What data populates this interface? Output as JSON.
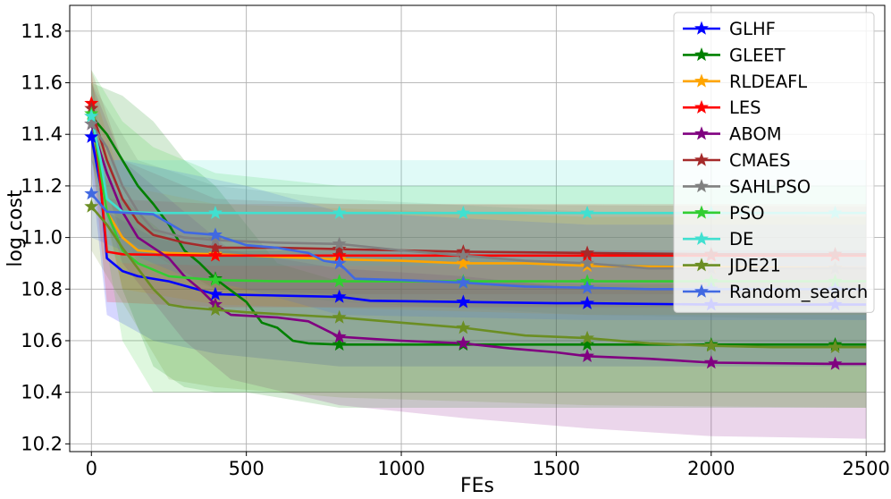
{
  "chart_data": {
    "type": "line",
    "title": "",
    "xlabel": "FEs",
    "ylabel": "log cost",
    "xlim": [
      -70,
      2560
    ],
    "ylim": [
      10.17,
      11.9
    ],
    "xticks": [
      0,
      500,
      1000,
      1500,
      2000,
      2500
    ],
    "xtick_labels": [
      "0",
      "500",
      "1000",
      "1500",
      "2000",
      "2500"
    ],
    "yticks": [
      10.2,
      10.4,
      10.6,
      10.8,
      11.0,
      11.2,
      11.4,
      11.6,
      11.8
    ],
    "ytick_labels": [
      "10.2",
      "10.4",
      "10.6",
      "10.8",
      "11.0",
      "11.2",
      "11.4",
      "11.6",
      "11.8"
    ],
    "grid": true,
    "legend_position": "top-right",
    "marker": "star",
    "marker_x": [
      0,
      400,
      800,
      1200,
      1600,
      2000,
      2400
    ],
    "series": [
      {
        "name": "GLHF",
        "color": "#0000ff",
        "points": [
          [
            0,
            11.39
          ],
          [
            30,
            11.2
          ],
          [
            50,
            10.92
          ],
          [
            100,
            10.87
          ],
          [
            150,
            10.85
          ],
          [
            250,
            10.83
          ],
          [
            400,
            10.78
          ],
          [
            600,
            10.775
          ],
          [
            800,
            10.77
          ],
          [
            900,
            10.755
          ],
          [
            1200,
            10.75
          ],
          [
            1500,
            10.745
          ],
          [
            1600,
            10.745
          ],
          [
            2000,
            10.74
          ],
          [
            2500,
            10.74
          ]
        ],
        "band": [
          [
            0,
            11.25,
            11.55
          ],
          [
            50,
            10.7,
            11.1
          ],
          [
            200,
            10.6,
            11.0
          ],
          [
            400,
            10.55,
            10.95
          ],
          [
            800,
            10.5,
            10.95
          ],
          [
            1600,
            10.5,
            10.95
          ],
          [
            2500,
            10.5,
            10.95
          ]
        ]
      },
      {
        "name": "GLEET",
        "color": "#008000",
        "points": [
          [
            0,
            11.47
          ],
          [
            50,
            11.4
          ],
          [
            100,
            11.3
          ],
          [
            150,
            11.2
          ],
          [
            200,
            11.13
          ],
          [
            250,
            11.05
          ],
          [
            300,
            10.95
          ],
          [
            350,
            10.9
          ],
          [
            400,
            10.84
          ],
          [
            500,
            10.75
          ],
          [
            550,
            10.67
          ],
          [
            600,
            10.65
          ],
          [
            650,
            10.6
          ],
          [
            700,
            10.59
          ],
          [
            800,
            10.585
          ],
          [
            1200,
            10.585
          ],
          [
            1600,
            10.585
          ],
          [
            2000,
            10.585
          ],
          [
            2500,
            10.585
          ]
        ],
        "band": [
          [
            0,
            11.35,
            11.6
          ],
          [
            100,
            10.8,
            11.55
          ],
          [
            200,
            10.5,
            11.45
          ],
          [
            300,
            10.42,
            11.3
          ],
          [
            400,
            10.4,
            11.2
          ],
          [
            500,
            10.4,
            11.05
          ],
          [
            600,
            10.38,
            10.9
          ],
          [
            800,
            10.34,
            10.83
          ],
          [
            1600,
            10.34,
            10.82
          ],
          [
            2500,
            10.34,
            10.82
          ]
        ]
      },
      {
        "name": "RLDEAFL",
        "color": "#ffa500",
        "points": [
          [
            0,
            11.48
          ],
          [
            50,
            11.1
          ],
          [
            100,
            11.0
          ],
          [
            150,
            10.95
          ],
          [
            250,
            10.94
          ],
          [
            400,
            10.935
          ],
          [
            800,
            10.915
          ],
          [
            1000,
            10.91
          ],
          [
            1200,
            10.9
          ],
          [
            1400,
            10.9
          ],
          [
            1600,
            10.89
          ],
          [
            2000,
            10.885
          ],
          [
            2500,
            10.88
          ]
        ],
        "band": [
          [
            0,
            11.3,
            11.6
          ],
          [
            100,
            10.8,
            11.2
          ],
          [
            400,
            10.74,
            11.13
          ],
          [
            1600,
            10.7,
            11.08
          ],
          [
            2500,
            10.7,
            11.08
          ]
        ]
      },
      {
        "name": "LES",
        "color": "#ff0000",
        "points": [
          [
            0,
            11.52
          ],
          [
            30,
            11.2
          ],
          [
            50,
            10.945
          ],
          [
            100,
            10.935
          ],
          [
            400,
            10.93
          ],
          [
            1200,
            10.93
          ],
          [
            1600,
            10.93
          ],
          [
            2000,
            10.93
          ],
          [
            2500,
            10.93
          ]
        ],
        "band": [
          [
            0,
            11.35,
            11.65
          ],
          [
            50,
            10.75,
            11.15
          ],
          [
            400,
            10.73,
            11.13
          ],
          [
            2500,
            10.73,
            11.13
          ]
        ]
      },
      {
        "name": "ABOM",
        "color": "#800080",
        "points": [
          [
            0,
            11.44
          ],
          [
            50,
            11.25
          ],
          [
            100,
            11.1
          ],
          [
            150,
            11.0
          ],
          [
            200,
            10.96
          ],
          [
            250,
            10.92
          ],
          [
            300,
            10.85
          ],
          [
            350,
            10.8
          ],
          [
            400,
            10.74
          ],
          [
            450,
            10.7
          ],
          [
            600,
            10.69
          ],
          [
            700,
            10.675
          ],
          [
            800,
            10.615
          ],
          [
            1000,
            10.6
          ],
          [
            1200,
            10.59
          ],
          [
            1350,
            10.57
          ],
          [
            1500,
            10.555
          ],
          [
            1600,
            10.54
          ],
          [
            1800,
            10.53
          ],
          [
            2000,
            10.515
          ],
          [
            2400,
            10.51
          ],
          [
            2500,
            10.51
          ]
        ],
        "band": [
          [
            0,
            11.3,
            11.6
          ],
          [
            100,
            10.9,
            11.3
          ],
          [
            300,
            10.6,
            11.1
          ],
          [
            450,
            10.45,
            10.95
          ],
          [
            800,
            10.35,
            10.88
          ],
          [
            1200,
            10.3,
            10.85
          ],
          [
            1600,
            10.26,
            10.8
          ],
          [
            2000,
            10.23,
            10.8
          ],
          [
            2500,
            10.22,
            10.8
          ]
        ]
      },
      {
        "name": "CMAES",
        "color": "#a52a2a",
        "points": [
          [
            0,
            11.5
          ],
          [
            50,
            11.3
          ],
          [
            100,
            11.15
          ],
          [
            150,
            11.06
          ],
          [
            200,
            11.01
          ],
          [
            300,
            10.98
          ],
          [
            400,
            10.96
          ],
          [
            600,
            10.96
          ],
          [
            800,
            10.955
          ],
          [
            1000,
            10.95
          ],
          [
            1200,
            10.945
          ],
          [
            1600,
            10.94
          ],
          [
            2000,
            10.935
          ],
          [
            2500,
            10.935
          ]
        ],
        "band": [
          [
            0,
            11.35,
            11.65
          ],
          [
            100,
            11.0,
            11.3
          ],
          [
            400,
            10.8,
            11.15
          ],
          [
            800,
            10.78,
            11.13
          ],
          [
            2500,
            10.78,
            11.12
          ]
        ]
      },
      {
        "name": "SAHLPSO",
        "color": "#808080",
        "points": [
          [
            0,
            11.44
          ],
          [
            50,
            11.35
          ],
          [
            100,
            11.2
          ],
          [
            150,
            11.1
          ],
          [
            200,
            11.03
          ],
          [
            300,
            11.0
          ],
          [
            400,
            10.99
          ],
          [
            600,
            10.98
          ],
          [
            800,
            10.975
          ],
          [
            1000,
            10.95
          ],
          [
            1200,
            10.93
          ],
          [
            1400,
            10.91
          ],
          [
            1600,
            10.9
          ],
          [
            1800,
            10.88
          ],
          [
            2000,
            10.88
          ],
          [
            2500,
            10.88
          ]
        ],
        "band": [
          [
            0,
            11.3,
            11.6
          ],
          [
            150,
            10.9,
            11.3
          ],
          [
            400,
            10.8,
            11.2
          ],
          [
            800,
            10.75,
            11.15
          ],
          [
            1600,
            10.7,
            11.1
          ],
          [
            2500,
            10.68,
            11.08
          ]
        ]
      },
      {
        "name": "PSO",
        "color": "#32cd32",
        "points": [
          [
            0,
            11.48
          ],
          [
            50,
            11.1
          ],
          [
            100,
            10.95
          ],
          [
            150,
            10.9
          ],
          [
            250,
            10.85
          ],
          [
            400,
            10.835
          ],
          [
            600,
            10.83
          ],
          [
            800,
            10.83
          ],
          [
            1200,
            10.83
          ],
          [
            1600,
            10.83
          ],
          [
            2000,
            10.83
          ],
          [
            2500,
            10.83
          ]
        ],
        "band": [
          [
            0,
            11.3,
            11.65
          ],
          [
            100,
            10.6,
            11.45
          ],
          [
            200,
            10.4,
            11.35
          ],
          [
            400,
            10.4,
            11.25
          ],
          [
            800,
            10.4,
            11.2
          ],
          [
            2500,
            10.4,
            11.2
          ]
        ]
      },
      {
        "name": "DE",
        "color": "#40e0d0",
        "points": [
          [
            0,
            11.47
          ],
          [
            30,
            11.3
          ],
          [
            50,
            11.15
          ],
          [
            100,
            11.1
          ],
          [
            200,
            11.095
          ],
          [
            400,
            11.095
          ],
          [
            800,
            11.095
          ],
          [
            1200,
            11.095
          ],
          [
            1600,
            11.095
          ],
          [
            2000,
            11.095
          ],
          [
            2500,
            11.095
          ]
        ],
        "band": [
          [
            0,
            11.35,
            11.6
          ],
          [
            50,
            10.95,
            11.3
          ],
          [
            100,
            10.9,
            11.3
          ],
          [
            400,
            10.89,
            11.3
          ],
          [
            2500,
            10.89,
            11.3
          ]
        ]
      },
      {
        "name": "JDE21",
        "color": "#6b8e23",
        "points": [
          [
            0,
            11.12
          ],
          [
            50,
            11.05
          ],
          [
            100,
            10.96
          ],
          [
            150,
            10.88
          ],
          [
            200,
            10.8
          ],
          [
            250,
            10.74
          ],
          [
            300,
            10.73
          ],
          [
            400,
            10.72
          ],
          [
            500,
            10.71
          ],
          [
            800,
            10.69
          ],
          [
            1000,
            10.67
          ],
          [
            1200,
            10.65
          ],
          [
            1400,
            10.62
          ],
          [
            1600,
            10.61
          ],
          [
            1800,
            10.59
          ],
          [
            2000,
            10.58
          ],
          [
            2200,
            10.575
          ],
          [
            2500,
            10.575
          ]
        ],
        "band": [
          [
            0,
            10.95,
            11.3
          ],
          [
            100,
            10.75,
            11.15
          ],
          [
            250,
            10.45,
            11.0
          ],
          [
            400,
            10.42,
            10.95
          ],
          [
            800,
            10.38,
            10.95
          ],
          [
            1600,
            10.35,
            10.9
          ],
          [
            2500,
            10.34,
            10.88
          ]
        ]
      },
      {
        "name": "Random_search",
        "color": "#4169e1",
        "points": [
          [
            0,
            11.17
          ],
          [
            50,
            11.1
          ],
          [
            200,
            11.09
          ],
          [
            300,
            11.02
          ],
          [
            400,
            11.01
          ],
          [
            500,
            10.97
          ],
          [
            600,
            10.96
          ],
          [
            700,
            10.94
          ],
          [
            750,
            10.91
          ],
          [
            800,
            10.9
          ],
          [
            850,
            10.84
          ],
          [
            1000,
            10.835
          ],
          [
            1200,
            10.825
          ],
          [
            1400,
            10.81
          ],
          [
            1600,
            10.805
          ],
          [
            1800,
            10.8
          ],
          [
            2500,
            10.8
          ]
        ],
        "band": [
          [
            0,
            11.0,
            11.3
          ],
          [
            100,
            10.95,
            11.3
          ],
          [
            300,
            10.85,
            11.25
          ],
          [
            500,
            10.8,
            11.2
          ],
          [
            800,
            10.7,
            11.1
          ],
          [
            1600,
            10.68,
            11.05
          ],
          [
            2500,
            10.68,
            11.05
          ]
        ]
      }
    ]
  }
}
